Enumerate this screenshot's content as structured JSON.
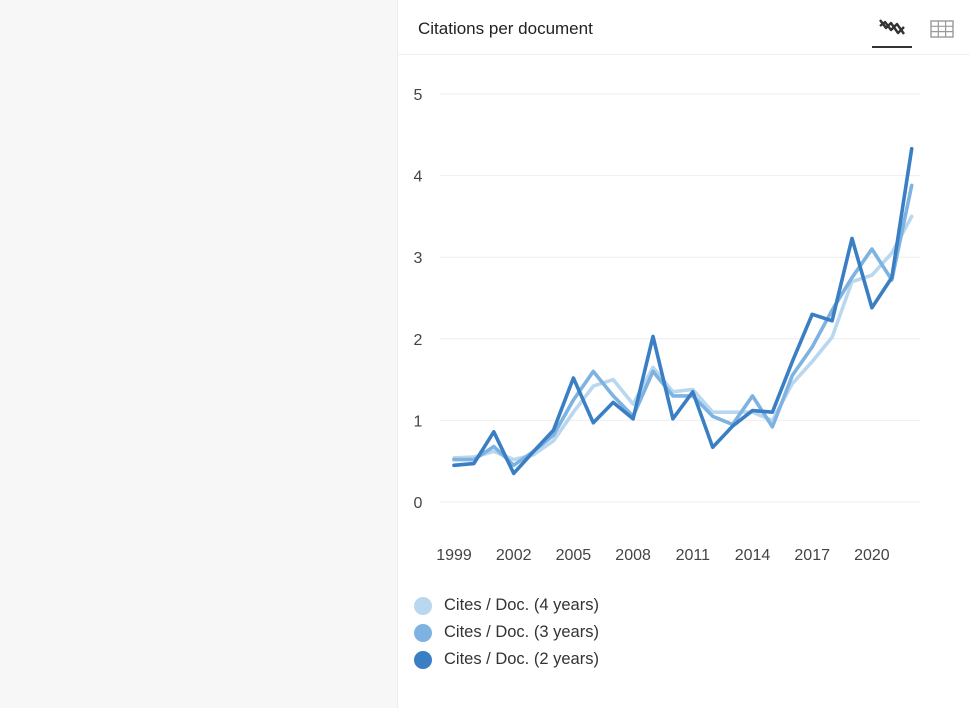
{
  "card": {
    "title": "Citations per document",
    "icons": [
      "line-chart-icon",
      "table-icon"
    ]
  },
  "colors": {
    "series_4y": "#b9d7ef",
    "series_3y": "#7eb2e1",
    "series_2y": "#3a7fc4",
    "grid": "#eeeeee",
    "tick_text": "#444444"
  },
  "chart_data": {
    "type": "line",
    "title": "Citations per document",
    "x": [
      1999,
      2000,
      2001,
      2002,
      2003,
      2004,
      2005,
      2006,
      2007,
      2008,
      2009,
      2010,
      2011,
      2012,
      2013,
      2014,
      2015,
      2016,
      2017,
      2018,
      2019,
      2020,
      2021,
      2022
    ],
    "xticks": [
      "1999",
      "2002",
      "2005",
      "2008",
      "2011",
      "2014",
      "2017",
      "2020"
    ],
    "yticks": [
      "0",
      "1",
      "2",
      "3",
      "4",
      "5"
    ],
    "ylim": [
      0,
      5.1
    ],
    "grid": true,
    "legend_placement": "bottom-left",
    "series": [
      {
        "name": "Cites / Doc. (4 years)",
        "values": [
          0.54,
          0.55,
          0.62,
          0.52,
          0.58,
          0.75,
          1.1,
          1.42,
          1.5,
          1.2,
          1.65,
          1.35,
          1.38,
          1.1,
          1.1,
          1.1,
          1.0,
          1.45,
          1.72,
          2.02,
          2.7,
          2.78,
          3.05,
          3.5
        ]
      },
      {
        "name": "Cites / Doc. (3 years)",
        "values": [
          0.52,
          0.52,
          0.68,
          0.45,
          0.62,
          0.82,
          1.25,
          1.6,
          1.3,
          1.05,
          1.6,
          1.3,
          1.3,
          1.05,
          0.95,
          1.3,
          0.92,
          1.55,
          1.9,
          2.35,
          2.75,
          3.1,
          2.72,
          3.88
        ]
      },
      {
        "name": "Cites / Doc. (2 years)",
        "values": [
          0.45,
          0.47,
          0.86,
          0.35,
          0.62,
          0.88,
          1.52,
          0.97,
          1.22,
          1.02,
          2.03,
          1.02,
          1.35,
          0.67,
          0.93,
          1.12,
          1.1,
          1.72,
          2.3,
          2.22,
          3.23,
          2.38,
          2.75,
          4.33
        ]
      }
    ]
  }
}
